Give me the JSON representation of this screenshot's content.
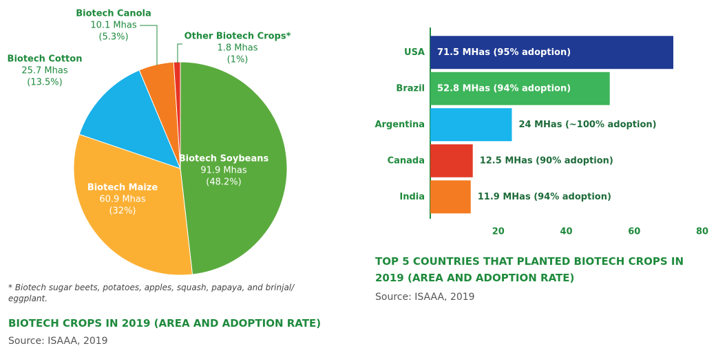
{
  "chart_data": [
    {
      "type": "pie",
      "categories": [
        "Biotech Soybeans",
        "Biotech Maize",
        "Biotech Cotton",
        "Biotech Canola",
        "Other Biotech Crops*"
      ],
      "values": [
        48.2,
        32,
        13.5,
        5.3,
        1
      ],
      "value_labels": [
        "(48.2%)",
        "(32%)",
        "(13.5%)",
        "(5.3%)",
        "(1%)"
      ],
      "areas": [
        91.9,
        60.9,
        25.7,
        10.1,
        1.8
      ],
      "area_labels": [
        "91.9 Mhas",
        "60.9 Mhas",
        "25.7 Mhas",
        "10.1 Mhas",
        "1.8 Mhas"
      ],
      "colors": [
        "#5aab3e",
        "#fbb034",
        "#1ab0e8",
        "#f47c20",
        "#e63323"
      ],
      "footnote": "* Biotech sugar beets, potatoes, apples, squash, papaya, and brinjal/ eggplant.",
      "title": "BIOTECH CROPS IN 2019 (AREA AND ADOPTION RATE)",
      "source": "Source: ISAAA, 2019"
    },
    {
      "type": "bar",
      "categories": [
        "USA",
        "Brazil",
        "Argentina",
        "Canada",
        "India"
      ],
      "values": [
        71.5,
        52.8,
        24,
        12.5,
        11.9
      ],
      "value_labels": [
        "71.5 MHas (95% adoption)",
        "52.8 MHas (94% adoption)",
        "24 MHas (~100% adoption)",
        "12.5 MHas (90% adoption)",
        "11.9 MHas (94% adoption)"
      ],
      "colors": [
        "#1f3a93",
        "#3db55a",
        "#19b5ec",
        "#e23a26",
        "#f47b22"
      ],
      "xlim": [
        0,
        80
      ],
      "xticks": [
        20,
        40,
        60,
        80
      ],
      "title": "TOP 5 COUNTRIES THAT PLANTED BIOTECH CROPS IN 2019 (AREA AND ADOPTION RATE)",
      "source": "Source: ISAAA, 2019"
    }
  ]
}
